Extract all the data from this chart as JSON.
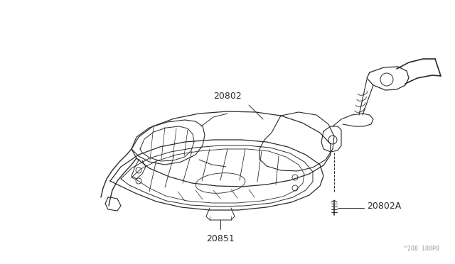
{
  "background_color": "#ffffff",
  "line_color": "#2a2a2a",
  "label_color": "#2a2a2a",
  "watermark_color": "#999999",
  "watermark": "^208 100P0",
  "figsize": [
    6.4,
    3.72
  ],
  "dpi": 100
}
